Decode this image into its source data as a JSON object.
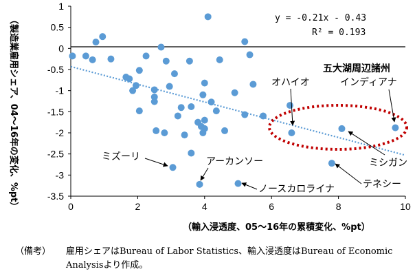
{
  "chart_data": {
    "type": "scatter",
    "xlabel": "（輸入浸透度、05～16年の累積変化、%pt）",
    "ylabel": "（製造業雇用シェア、04～16年の変化、%pt）",
    "xlim": [
      0,
      10
    ],
    "ylim": [
      -3.5,
      1
    ],
    "x_ticks": [
      0,
      2,
      4,
      6,
      8,
      10
    ],
    "y_ticks": [
      1,
      0.5,
      0,
      -0.5,
      -1,
      -1.5,
      -2,
      -2.5,
      -3,
      -3.5
    ],
    "x_tick_labels": [
      "0",
      "2",
      "4",
      "6",
      "8",
      "10"
    ],
    "y_tick_labels": [
      "1",
      "0.5",
      "0",
      "-0.5",
      "-1",
      "-1.5",
      "-2",
      "-2.5",
      "-3",
      "-3.5"
    ],
    "grid": false,
    "zero_line": true,
    "points": [
      {
        "x": 0.05,
        "y": -0.18
      },
      {
        "x": 0.45,
        "y": -0.18
      },
      {
        "x": 0.65,
        "y": -0.27
      },
      {
        "x": 0.75,
        "y": 0.15
      },
      {
        "x": 0.95,
        "y": 0.28
      },
      {
        "x": 1.2,
        "y": -0.25
      },
      {
        "x": 1.65,
        "y": -0.68
      },
      {
        "x": 1.75,
        "y": -0.72
      },
      {
        "x": 1.85,
        "y": -1.0
      },
      {
        "x": 1.95,
        "y": -0.88
      },
      {
        "x": 2.05,
        "y": -0.52
      },
      {
        "x": 2.05,
        "y": -1.48
      },
      {
        "x": 2.25,
        "y": -0.18
      },
      {
        "x": 2.5,
        "y": -0.98
      },
      {
        "x": 2.5,
        "y": -1.15
      },
      {
        "x": 2.5,
        "y": -1.26
      },
      {
        "x": 2.55,
        "y": -1.95
      },
      {
        "x": 2.7,
        "y": 0.03
      },
      {
        "x": 2.85,
        "y": -0.3
      },
      {
        "x": 2.8,
        "y": -2.0
      },
      {
        "x": 2.95,
        "y": -0.9
      },
      {
        "x": 3.1,
        "y": -0.6
      },
      {
        "x": 3.2,
        "y": -1.6
      },
      {
        "x": 3.3,
        "y": -1.4
      },
      {
        "x": 3.4,
        "y": -2.05
      },
      {
        "x": 3.55,
        "y": -0.3
      },
      {
        "x": 3.6,
        "y": -2.48
      },
      {
        "x": 3.6,
        "y": -1.38
      },
      {
        "x": 3.8,
        "y": -1.75
      },
      {
        "x": 3.9,
        "y": -1.85
      },
      {
        "x": 3.95,
        "y": -2.0
      },
      {
        "x": 3.95,
        "y": -1.1
      },
      {
        "x": 4.0,
        "y": -0.82
      },
      {
        "x": 4.0,
        "y": -1.7
      },
      {
        "x": 4.0,
        "y": -1.9
      },
      {
        "x": 4.1,
        "y": 0.75
      },
      {
        "x": 4.2,
        "y": -1.27
      },
      {
        "x": 4.35,
        "y": -1.48
      },
      {
        "x": 4.45,
        "y": -0.27
      },
      {
        "x": 4.6,
        "y": -1.95
      },
      {
        "x": 4.9,
        "y": -1.05
      },
      {
        "x": 5.2,
        "y": 0.16
      },
      {
        "x": 5.2,
        "y": -1.57
      },
      {
        "x": 5.35,
        "y": -0.15
      },
      {
        "x": 5.45,
        "y": -0.85
      },
      {
        "x": 5.75,
        "y": -1.6
      },
      {
        "x": 6.55,
        "y": -1.35
      },
      {
        "x": 6.6,
        "y": -2.0,
        "label": "オハイオ"
      },
      {
        "x": 3.05,
        "y": -2.82,
        "label": "ミズーリ"
      },
      {
        "x": 3.85,
        "y": -3.22,
        "label": "アーカンソー"
      },
      {
        "x": 5.0,
        "y": -3.2,
        "label": "ノースカロライナ"
      },
      {
        "x": 7.8,
        "y": -2.72,
        "label": "テネシー"
      },
      {
        "x": 8.1,
        "y": -1.9,
        "label": "ミシガン"
      },
      {
        "x": 9.7,
        "y": -1.88,
        "label": "インディアナ"
      }
    ],
    "trendline": {
      "slope": -0.21,
      "intercept": -0.43,
      "x_range": [
        0,
        10
      ],
      "equation": "y = -0.21x - 0.43",
      "r2": "R² = 0.193"
    },
    "group_label": "五大湖周辺諸州",
    "labels": {
      "ohio": "オハイオ",
      "indiana": "インディアナ",
      "michigan": "ミシガン",
      "tennessee": "テネシー",
      "missouri": "ミズーリ",
      "arkansas": "アーカンソー",
      "north_carolina": "ノースカロライナ"
    },
    "colors": {
      "point": "#5b9bd5",
      "trend": "#5b9bd5",
      "ellipse": "#c00000",
      "zero_line": "#000000"
    }
  },
  "note": {
    "label": "（備考）",
    "text": "雇用シェアはBureau of Labor Statistics、輸入浸透度はBureau of Economic Analysisより作成。"
  }
}
